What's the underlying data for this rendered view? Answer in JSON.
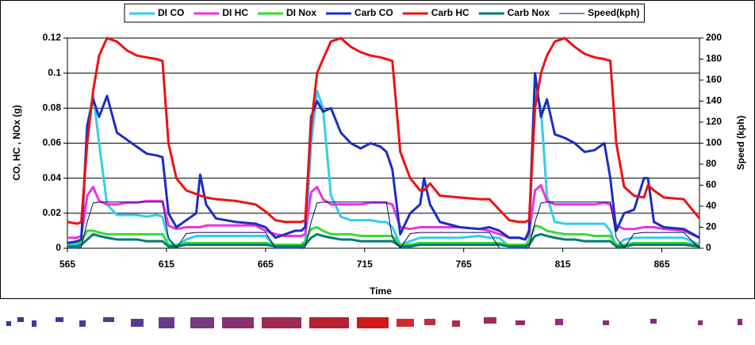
{
  "chart_data": {
    "type": "line",
    "x_label": "Time",
    "y_label": "CO, HC , NOx (g)",
    "y2_label": "Speed (kph)",
    "legend": "top",
    "grid": true,
    "xlim": [
      565,
      884
    ],
    "xticks": [
      565,
      615,
      665,
      715,
      765,
      815,
      865
    ],
    "ylim": [
      0,
      0.12
    ],
    "yticks": [
      0,
      0.02,
      0.04,
      0.06,
      0.08,
      0.1,
      0.12
    ],
    "y2lim": [
      0,
      200
    ],
    "y2ticks": [
      0,
      20,
      40,
      60,
      80,
      100,
      120,
      140,
      160,
      180,
      200
    ],
    "x": [
      565,
      570,
      572,
      575,
      578,
      581,
      585,
      590,
      595,
      600,
      605,
      610,
      613,
      616,
      620,
      625,
      630,
      632,
      635,
      640,
      650,
      660,
      665,
      670,
      675,
      680,
      683,
      685,
      688,
      691,
      694,
      698,
      703,
      708,
      713,
      718,
      723,
      726,
      729,
      733,
      738,
      743,
      745,
      748,
      753,
      763,
      773,
      778,
      783,
      788,
      793,
      796,
      798,
      801,
      804,
      807,
      811,
      816,
      821,
      826,
      831,
      836,
      839,
      842,
      846,
      851,
      856,
      858,
      861,
      866,
      876,
      884
    ],
    "series": [
      {
        "name": "DI CO",
        "color": "#33ccee",
        "width": 3,
        "values": [
          0.002,
          0.002,
          0.003,
          0.07,
          0.088,
          0.06,
          0.025,
          0.019,
          0.019,
          0.019,
          0.018,
          0.019,
          0.018,
          0.005,
          0.001,
          0.005,
          0.007,
          0.007,
          0.007,
          0.007,
          0.007,
          0.007,
          0.007,
          0.001,
          0.001,
          0.001,
          0.001,
          0.003,
          0.06,
          0.09,
          0.08,
          0.03,
          0.018,
          0.016,
          0.016,
          0.016,
          0.015,
          0.015,
          0.012,
          0.002,
          0.004,
          0.006,
          0.006,
          0.006,
          0.006,
          0.006,
          0.007,
          0.006,
          0.006,
          0.001,
          0.001,
          0.001,
          0.005,
          0.09,
          0.08,
          0.03,
          0.015,
          0.014,
          0.014,
          0.014,
          0.014,
          0.014,
          0.01,
          0.001,
          0.005,
          0.006,
          0.006,
          0.006,
          0.006,
          0.006,
          0.006,
          0.002
        ]
      },
      {
        "name": "DI HC",
        "color": "#ee33dd",
        "width": 3,
        "values": [
          0.006,
          0.006,
          0.007,
          0.03,
          0.035,
          0.027,
          0.025,
          0.025,
          0.026,
          0.026,
          0.027,
          0.027,
          0.027,
          0.013,
          0.011,
          0.012,
          0.012,
          0.012,
          0.013,
          0.013,
          0.013,
          0.013,
          0.01,
          0.008,
          0.007,
          0.007,
          0.007,
          0.008,
          0.032,
          0.035,
          0.028,
          0.025,
          0.025,
          0.025,
          0.025,
          0.026,
          0.026,
          0.026,
          0.025,
          0.012,
          0.011,
          0.012,
          0.012,
          0.012,
          0.012,
          0.012,
          0.011,
          0.01,
          0.008,
          0.006,
          0.006,
          0.005,
          0.008,
          0.033,
          0.036,
          0.027,
          0.025,
          0.025,
          0.025,
          0.025,
          0.025,
          0.026,
          0.025,
          0.013,
          0.011,
          0.011,
          0.012,
          0.012,
          0.012,
          0.011,
          0.01,
          0.006
        ]
      },
      {
        "name": "DI Nox",
        "color": "#33dd33",
        "width": 3,
        "values": [
          0.003,
          0.003,
          0.004,
          0.01,
          0.01,
          0.009,
          0.008,
          0.008,
          0.008,
          0.008,
          0.008,
          0.008,
          0.008,
          0.002,
          0.002,
          0.003,
          0.003,
          0.003,
          0.003,
          0.003,
          0.003,
          0.003,
          0.003,
          0.002,
          0.002,
          0.002,
          0.002,
          0.004,
          0.011,
          0.012,
          0.01,
          0.008,
          0.008,
          0.008,
          0.007,
          0.007,
          0.007,
          0.007,
          0.007,
          0.002,
          0.002,
          0.003,
          0.003,
          0.003,
          0.003,
          0.003,
          0.003,
          0.003,
          0.003,
          0.002,
          0.002,
          0.002,
          0.004,
          0.013,
          0.012,
          0.01,
          0.009,
          0.008,
          0.008,
          0.008,
          0.007,
          0.007,
          0.007,
          0.002,
          0.002,
          0.003,
          0.003,
          0.003,
          0.003,
          0.003,
          0.003,
          0.002
        ]
      },
      {
        "name": "Carb CO",
        "color": "#1a2ec0",
        "width": 3,
        "values": [
          0.003,
          0.004,
          0.005,
          0.07,
          0.085,
          0.075,
          0.087,
          0.066,
          0.062,
          0.058,
          0.054,
          0.053,
          0.052,
          0.02,
          0.012,
          0.016,
          0.02,
          0.042,
          0.025,
          0.017,
          0.015,
          0.014,
          0.012,
          0.006,
          0.008,
          0.01,
          0.01,
          0.012,
          0.075,
          0.084,
          0.078,
          0.08,
          0.066,
          0.06,
          0.057,
          0.06,
          0.058,
          0.055,
          0.045,
          0.008,
          0.02,
          0.025,
          0.04,
          0.025,
          0.015,
          0.012,
          0.011,
          0.012,
          0.01,
          0.006,
          0.006,
          0.005,
          0.01,
          0.1,
          0.075,
          0.085,
          0.065,
          0.063,
          0.06,
          0.055,
          0.056,
          0.06,
          0.04,
          0.01,
          0.02,
          0.022,
          0.04,
          0.04,
          0.015,
          0.012,
          0.011,
          0.006
        ]
      },
      {
        "name": "Carb HC",
        "color": "#ee1111",
        "width": 3,
        "values": [
          0.015,
          0.014,
          0.015,
          0.06,
          0.09,
          0.11,
          0.12,
          0.118,
          0.113,
          0.11,
          0.109,
          0.108,
          0.107,
          0.06,
          0.04,
          0.033,
          0.031,
          0.03,
          0.029,
          0.028,
          0.027,
          0.025,
          0.021,
          0.016,
          0.015,
          0.015,
          0.015,
          0.016,
          0.07,
          0.1,
          0.108,
          0.118,
          0.12,
          0.115,
          0.112,
          0.11,
          0.109,
          0.108,
          0.107,
          0.055,
          0.04,
          0.033,
          0.033,
          0.037,
          0.03,
          0.029,
          0.028,
          0.028,
          0.022,
          0.016,
          0.015,
          0.015,
          0.016,
          0.08,
          0.1,
          0.11,
          0.118,
          0.12,
          0.115,
          0.111,
          0.109,
          0.108,
          0.107,
          0.06,
          0.035,
          0.03,
          0.029,
          0.036,
          0.033,
          0.029,
          0.028,
          0.017
        ]
      },
      {
        "name": "Carb Nox",
        "color": "#007a70",
        "width": 3,
        "values": [
          0.001,
          0.001,
          0.002,
          0.005,
          0.008,
          0.007,
          0.006,
          0.005,
          0.005,
          0.005,
          0.004,
          0.004,
          0.004,
          0.001,
          0.001,
          0.002,
          0.002,
          0.002,
          0.002,
          0.002,
          0.002,
          0.002,
          0.002,
          0.001,
          0.001,
          0.001,
          0.001,
          0.002,
          0.006,
          0.008,
          0.007,
          0.006,
          0.005,
          0.005,
          0.004,
          0.004,
          0.004,
          0.004,
          0.004,
          0.001,
          0.001,
          0.002,
          0.002,
          0.002,
          0.002,
          0.002,
          0.002,
          0.002,
          0.002,
          0.001,
          0.001,
          0.001,
          0.002,
          0.007,
          0.008,
          0.007,
          0.006,
          0.005,
          0.005,
          0.004,
          0.004,
          0.004,
          0.004,
          0.001,
          0.001,
          0.002,
          0.002,
          0.002,
          0.002,
          0.002,
          0.002,
          0.001
        ]
      },
      {
        "name": "Speed(kph)",
        "color": "#000066",
        "width": 1,
        "axis": "y2",
        "values": [
          0,
          0,
          1,
          25,
          43,
          44,
          44,
          44,
          44,
          44,
          44,
          44,
          44,
          10,
          0,
          14,
          15,
          15,
          15,
          15,
          15,
          15,
          15,
          0,
          0,
          0,
          0,
          1,
          25,
          43,
          44,
          44,
          44,
          44,
          44,
          44,
          44,
          44,
          10,
          0,
          14,
          15,
          15,
          15,
          15,
          15,
          15,
          15,
          0,
          0,
          0,
          0,
          1,
          25,
          43,
          44,
          44,
          44,
          44,
          44,
          44,
          44,
          44,
          10,
          0,
          14,
          15,
          15,
          15,
          15,
          15,
          0
        ]
      }
    ]
  }
}
